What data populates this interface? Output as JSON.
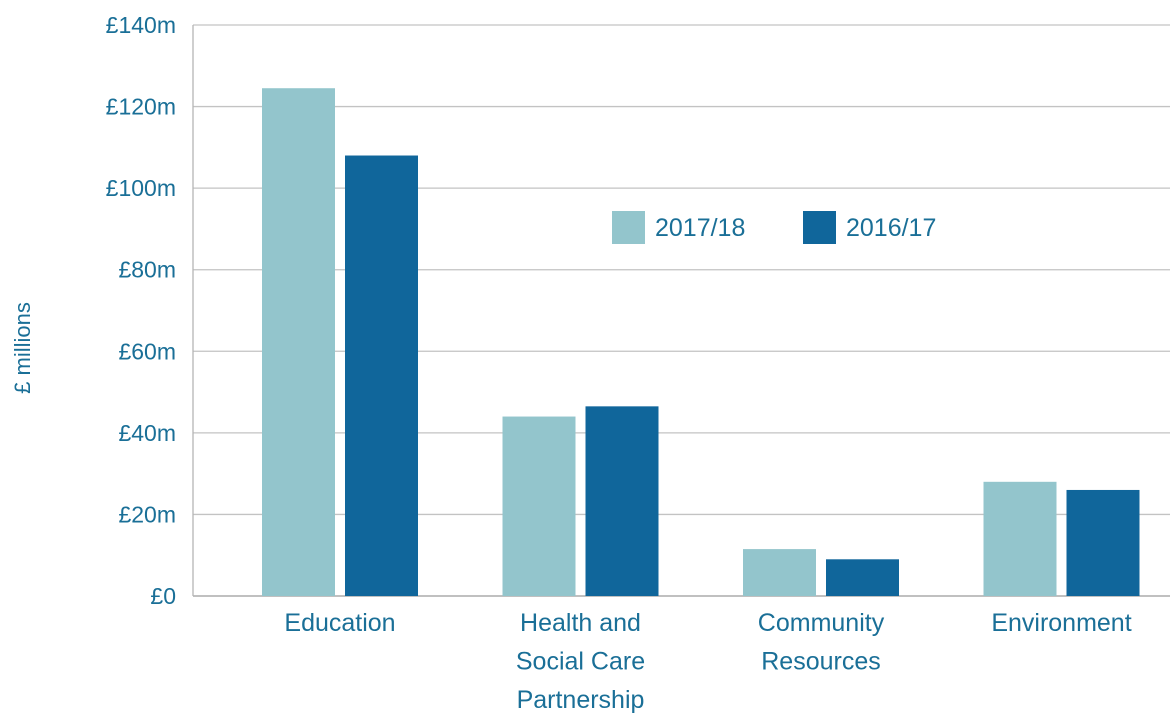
{
  "chart_data": {
    "type": "bar",
    "title": "",
    "xlabel": "",
    "ylabel": "£ millions",
    "ylim": [
      0,
      140
    ],
    "yticks": [
      0,
      20,
      40,
      60,
      80,
      100,
      120,
      140
    ],
    "ytick_labels": [
      "£0",
      "£20m",
      "£40m",
      "£60m",
      "£80m",
      "£100m",
      "£120m",
      "£140m"
    ],
    "categories": [
      "Education",
      "Health and Social Care Partnership",
      "Community Resources",
      "Environment"
    ],
    "category_label_lines": [
      [
        "Education"
      ],
      [
        "Health and",
        "Social Care",
        "Partnership"
      ],
      [
        "Community",
        "Resources"
      ],
      [
        "Environment"
      ]
    ],
    "series": [
      {
        "name": "2017/18",
        "color": "#93c5cc",
        "values": [
          124.5,
          44,
          11.5,
          28
        ]
      },
      {
        "name": "2016/17",
        "color": "#10669b",
        "values": [
          108,
          46.5,
          9,
          26
        ]
      }
    ],
    "grid": true,
    "legend_position": "top-center"
  }
}
